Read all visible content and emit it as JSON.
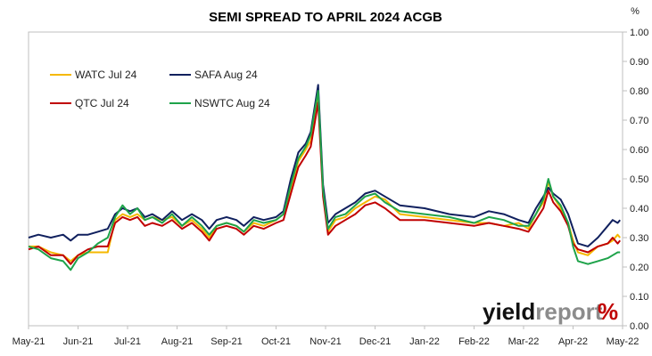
{
  "chart_data": {
    "type": "line",
    "title": "SEMI SPREAD TO APRIL 2024 ACGB",
    "y_unit": "%",
    "ylim": [
      0,
      1.0
    ],
    "y_ticks": [
      "0.00",
      "0.10",
      "0.20",
      "0.30",
      "0.40",
      "0.50",
      "0.60",
      "0.70",
      "0.80",
      "0.90",
      "1.00"
    ],
    "x_ticks": [
      "May-21",
      "Jun-21",
      "Jul-21",
      "Aug-21",
      "Sep-21",
      "Oct-21",
      "Nov-21",
      "Dec-21",
      "Jan-22",
      "Feb-22",
      "Mar-22",
      "Apr-22",
      "May-22"
    ],
    "grid": false,
    "legend_position": "top-left",
    "brand": {
      "part1": "yield",
      "part2": "report",
      "symbol": "%"
    },
    "series": [
      {
        "name": "WATC Jul 24",
        "color": "#f5b800",
        "points": [
          [
            0,
            0.27
          ],
          [
            0.2,
            0.27
          ],
          [
            0.45,
            0.25
          ],
          [
            0.7,
            0.24
          ],
          [
            0.85,
            0.22
          ],
          [
            1.0,
            0.24
          ],
          [
            1.2,
            0.25
          ],
          [
            1.4,
            0.25
          ],
          [
            1.6,
            0.25
          ],
          [
            1.75,
            0.36
          ],
          [
            1.9,
            0.38
          ],
          [
            2.05,
            0.37
          ],
          [
            2.2,
            0.38
          ],
          [
            2.35,
            0.36
          ],
          [
            2.5,
            0.37
          ],
          [
            2.7,
            0.36
          ],
          [
            2.9,
            0.37
          ],
          [
            3.1,
            0.34
          ],
          [
            3.3,
            0.36
          ],
          [
            3.5,
            0.33
          ],
          [
            3.65,
            0.3
          ],
          [
            3.8,
            0.34
          ],
          [
            4.0,
            0.35
          ],
          [
            4.2,
            0.34
          ],
          [
            4.35,
            0.32
          ],
          [
            4.55,
            0.35
          ],
          [
            4.75,
            0.34
          ],
          [
            5.0,
            0.36
          ],
          [
            5.15,
            0.38
          ],
          [
            5.3,
            0.47
          ],
          [
            5.45,
            0.56
          ],
          [
            5.6,
            0.6
          ],
          [
            5.7,
            0.63
          ],
          [
            5.85,
            0.78
          ],
          [
            5.95,
            0.45
          ],
          [
            6.05,
            0.32
          ],
          [
            6.2,
            0.36
          ],
          [
            6.4,
            0.37
          ],
          [
            6.6,
            0.4
          ],
          [
            6.8,
            0.42
          ],
          [
            7.0,
            0.44
          ],
          [
            7.2,
            0.43
          ],
          [
            7.5,
            0.38
          ],
          [
            8.0,
            0.37
          ],
          [
            8.5,
            0.36
          ],
          [
            9.0,
            0.35
          ],
          [
            9.3,
            0.35
          ],
          [
            9.6,
            0.34
          ],
          [
            9.9,
            0.35
          ],
          [
            10.1,
            0.33
          ],
          [
            10.25,
            0.38
          ],
          [
            10.4,
            0.42
          ],
          [
            10.5,
            0.49
          ],
          [
            10.6,
            0.44
          ],
          [
            10.75,
            0.4
          ],
          [
            10.9,
            0.35
          ],
          [
            11.0,
            0.29
          ],
          [
            11.1,
            0.25
          ],
          [
            11.3,
            0.24
          ],
          [
            11.5,
            0.27
          ],
          [
            11.7,
            0.28
          ],
          [
            11.8,
            0.29
          ],
          [
            11.9,
            0.31
          ],
          [
            11.95,
            0.3
          ]
        ]
      },
      {
        "name": "SAFA Aug 24",
        "color": "#10205e",
        "points": [
          [
            0,
            0.3
          ],
          [
            0.2,
            0.31
          ],
          [
            0.45,
            0.3
          ],
          [
            0.7,
            0.31
          ],
          [
            0.85,
            0.29
          ],
          [
            1.0,
            0.31
          ],
          [
            1.2,
            0.31
          ],
          [
            1.4,
            0.32
          ],
          [
            1.6,
            0.33
          ],
          [
            1.75,
            0.38
          ],
          [
            1.9,
            0.4
          ],
          [
            2.05,
            0.39
          ],
          [
            2.2,
            0.4
          ],
          [
            2.35,
            0.37
          ],
          [
            2.5,
            0.38
          ],
          [
            2.7,
            0.36
          ],
          [
            2.9,
            0.39
          ],
          [
            3.1,
            0.36
          ],
          [
            3.3,
            0.38
          ],
          [
            3.5,
            0.36
          ],
          [
            3.65,
            0.33
          ],
          [
            3.8,
            0.36
          ],
          [
            4.0,
            0.37
          ],
          [
            4.2,
            0.36
          ],
          [
            4.35,
            0.34
          ],
          [
            4.55,
            0.37
          ],
          [
            4.75,
            0.36
          ],
          [
            5.0,
            0.37
          ],
          [
            5.15,
            0.39
          ],
          [
            5.3,
            0.5
          ],
          [
            5.45,
            0.59
          ],
          [
            5.6,
            0.62
          ],
          [
            5.7,
            0.66
          ],
          [
            5.85,
            0.82
          ],
          [
            5.95,
            0.48
          ],
          [
            6.05,
            0.35
          ],
          [
            6.2,
            0.38
          ],
          [
            6.4,
            0.4
          ],
          [
            6.6,
            0.42
          ],
          [
            6.8,
            0.45
          ],
          [
            7.0,
            0.46
          ],
          [
            7.2,
            0.44
          ],
          [
            7.5,
            0.41
          ],
          [
            8.0,
            0.4
          ],
          [
            8.5,
            0.38
          ],
          [
            9.0,
            0.37
          ],
          [
            9.3,
            0.39
          ],
          [
            9.6,
            0.38
          ],
          [
            9.9,
            0.36
          ],
          [
            10.1,
            0.35
          ],
          [
            10.25,
            0.4
          ],
          [
            10.4,
            0.44
          ],
          [
            10.5,
            0.47
          ],
          [
            10.6,
            0.45
          ],
          [
            10.75,
            0.43
          ],
          [
            10.9,
            0.38
          ],
          [
            11.0,
            0.33
          ],
          [
            11.1,
            0.28
          ],
          [
            11.3,
            0.27
          ],
          [
            11.5,
            0.3
          ],
          [
            11.7,
            0.34
          ],
          [
            11.8,
            0.36
          ],
          [
            11.9,
            0.35
          ],
          [
            11.95,
            0.36
          ]
        ]
      },
      {
        "name": "QTC Jul 24",
        "color": "#c00000",
        "points": [
          [
            0,
            0.26
          ],
          [
            0.2,
            0.27
          ],
          [
            0.45,
            0.24
          ],
          [
            0.7,
            0.24
          ],
          [
            0.85,
            0.21
          ],
          [
            1.0,
            0.24
          ],
          [
            1.2,
            0.26
          ],
          [
            1.4,
            0.27
          ],
          [
            1.6,
            0.27
          ],
          [
            1.75,
            0.35
          ],
          [
            1.9,
            0.37
          ],
          [
            2.05,
            0.36
          ],
          [
            2.2,
            0.37
          ],
          [
            2.35,
            0.34
          ],
          [
            2.5,
            0.35
          ],
          [
            2.7,
            0.34
          ],
          [
            2.9,
            0.36
          ],
          [
            3.1,
            0.33
          ],
          [
            3.3,
            0.35
          ],
          [
            3.5,
            0.32
          ],
          [
            3.65,
            0.29
          ],
          [
            3.8,
            0.33
          ],
          [
            4.0,
            0.34
          ],
          [
            4.2,
            0.33
          ],
          [
            4.35,
            0.31
          ],
          [
            4.55,
            0.34
          ],
          [
            4.75,
            0.33
          ],
          [
            5.0,
            0.35
          ],
          [
            5.15,
            0.36
          ],
          [
            5.3,
            0.45
          ],
          [
            5.45,
            0.54
          ],
          [
            5.6,
            0.58
          ],
          [
            5.7,
            0.61
          ],
          [
            5.85,
            0.76
          ],
          [
            5.95,
            0.44
          ],
          [
            6.05,
            0.31
          ],
          [
            6.2,
            0.34
          ],
          [
            6.4,
            0.36
          ],
          [
            6.6,
            0.38
          ],
          [
            6.8,
            0.41
          ],
          [
            7.0,
            0.42
          ],
          [
            7.2,
            0.4
          ],
          [
            7.5,
            0.36
          ],
          [
            8.0,
            0.36
          ],
          [
            8.5,
            0.35
          ],
          [
            9.0,
            0.34
          ],
          [
            9.3,
            0.35
          ],
          [
            9.6,
            0.34
          ],
          [
            9.9,
            0.33
          ],
          [
            10.1,
            0.32
          ],
          [
            10.25,
            0.36
          ],
          [
            10.4,
            0.4
          ],
          [
            10.5,
            0.46
          ],
          [
            10.6,
            0.42
          ],
          [
            10.75,
            0.39
          ],
          [
            10.9,
            0.34
          ],
          [
            11.0,
            0.28
          ],
          [
            11.1,
            0.26
          ],
          [
            11.3,
            0.25
          ],
          [
            11.5,
            0.27
          ],
          [
            11.7,
            0.28
          ],
          [
            11.8,
            0.3
          ],
          [
            11.9,
            0.28
          ],
          [
            11.95,
            0.29
          ]
        ]
      },
      {
        "name": "NSWTC Aug 24",
        "color": "#1ea34a",
        "points": [
          [
            0,
            0.27
          ],
          [
            0.2,
            0.26
          ],
          [
            0.45,
            0.23
          ],
          [
            0.7,
            0.22
          ],
          [
            0.85,
            0.19
          ],
          [
            1.0,
            0.23
          ],
          [
            1.2,
            0.25
          ],
          [
            1.4,
            0.28
          ],
          [
            1.6,
            0.3
          ],
          [
            1.75,
            0.37
          ],
          [
            1.9,
            0.41
          ],
          [
            2.05,
            0.38
          ],
          [
            2.2,
            0.4
          ],
          [
            2.35,
            0.36
          ],
          [
            2.5,
            0.37
          ],
          [
            2.7,
            0.35
          ],
          [
            2.9,
            0.38
          ],
          [
            3.1,
            0.34
          ],
          [
            3.3,
            0.37
          ],
          [
            3.5,
            0.34
          ],
          [
            3.65,
            0.31
          ],
          [
            3.8,
            0.34
          ],
          [
            4.0,
            0.35
          ],
          [
            4.2,
            0.34
          ],
          [
            4.35,
            0.32
          ],
          [
            4.55,
            0.36
          ],
          [
            4.75,
            0.35
          ],
          [
            5.0,
            0.36
          ],
          [
            5.15,
            0.38
          ],
          [
            5.3,
            0.48
          ],
          [
            5.45,
            0.57
          ],
          [
            5.6,
            0.61
          ],
          [
            5.7,
            0.65
          ],
          [
            5.85,
            0.8
          ],
          [
            5.95,
            0.46
          ],
          [
            6.05,
            0.33
          ],
          [
            6.2,
            0.37
          ],
          [
            6.4,
            0.38
          ],
          [
            6.6,
            0.41
          ],
          [
            6.8,
            0.44
          ],
          [
            7.0,
            0.45
          ],
          [
            7.2,
            0.42
          ],
          [
            7.5,
            0.39
          ],
          [
            8.0,
            0.38
          ],
          [
            8.5,
            0.37
          ],
          [
            9.0,
            0.35
          ],
          [
            9.3,
            0.37
          ],
          [
            9.6,
            0.36
          ],
          [
            9.9,
            0.34
          ],
          [
            10.1,
            0.34
          ],
          [
            10.25,
            0.38
          ],
          [
            10.4,
            0.43
          ],
          [
            10.5,
            0.5
          ],
          [
            10.6,
            0.44
          ],
          [
            10.75,
            0.41
          ],
          [
            10.9,
            0.35
          ],
          [
            11.0,
            0.27
          ],
          [
            11.1,
            0.22
          ],
          [
            11.3,
            0.21
          ],
          [
            11.5,
            0.22
          ],
          [
            11.7,
            0.23
          ],
          [
            11.8,
            0.24
          ],
          [
            11.9,
            0.25
          ],
          [
            11.95,
            0.25
          ]
        ]
      }
    ]
  }
}
